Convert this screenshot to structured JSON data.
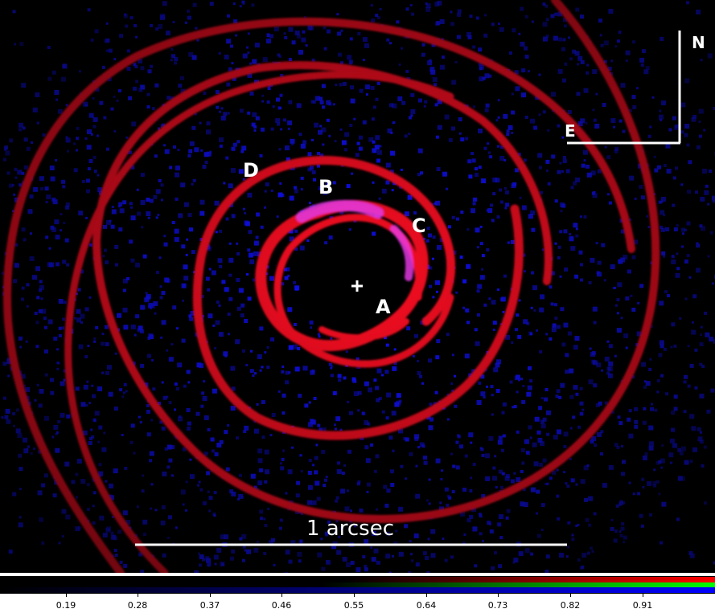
{
  "image": {
    "source_labels": [
      {
        "id": "A",
        "text": "A"
      },
      {
        "id": "B",
        "text": "B"
      },
      {
        "id": "C",
        "text": "C"
      },
      {
        "id": "D",
        "text": "D"
      }
    ],
    "center_marker": "+",
    "scalebar_label": "1 arcsec",
    "compass": {
      "north": "N",
      "east": "E"
    },
    "colors": {
      "background": "#000000",
      "arm_color": "#ff1020",
      "noise_color": "#1010ff",
      "overlay_color": "#ffffff"
    }
  },
  "colorbar": {
    "ticks": [
      "0.19",
      "0.28",
      "0.37",
      "0.46",
      "0.55",
      "0.64",
      "0.73",
      "0.82",
      "0.91"
    ],
    "channels": [
      "red",
      "green",
      "blue"
    ]
  }
}
